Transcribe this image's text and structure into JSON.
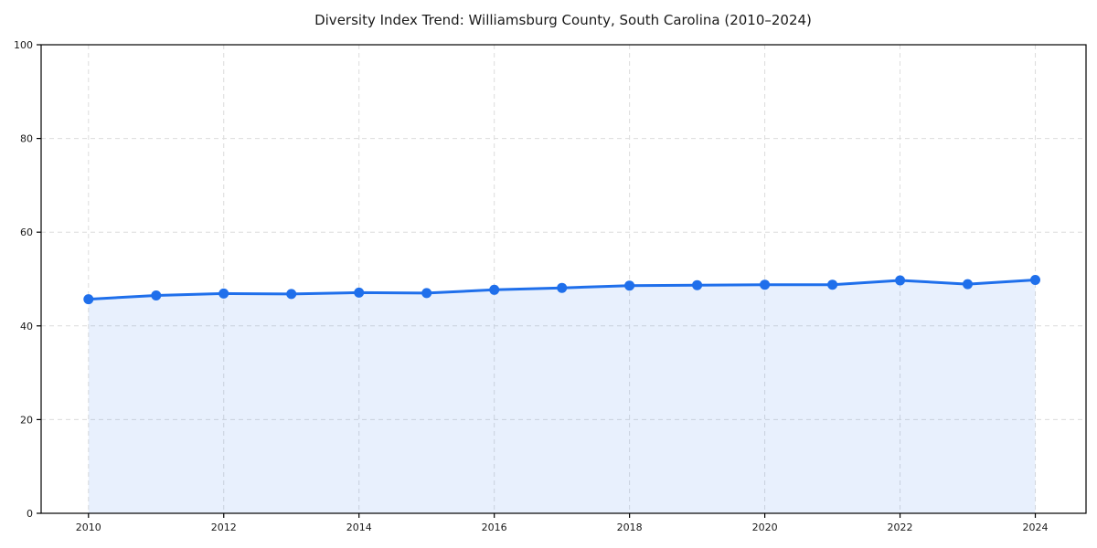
{
  "chart_data": {
    "type": "line",
    "title": "Diversity Index Trend: Williamsburg County, South Carolina (2010–2024)",
    "xlabel": "",
    "ylabel": "",
    "x": [
      2010,
      2011,
      2012,
      2013,
      2014,
      2015,
      2016,
      2017,
      2018,
      2019,
      2020,
      2021,
      2022,
      2023,
      2024
    ],
    "series": [
      {
        "name": "Diversity Index",
        "values": [
          45.7,
          46.5,
          46.9,
          46.8,
          47.1,
          47.0,
          47.7,
          48.1,
          48.6,
          48.7,
          48.8,
          48.8,
          49.7,
          48.9,
          49.8
        ]
      }
    ],
    "xlim": [
      2009.3,
      2024.75
    ],
    "ylim": [
      0,
      100
    ],
    "xticks": [
      "2010",
      "2012",
      "2014",
      "2016",
      "2018",
      "2020",
      "2022",
      "2024"
    ],
    "yticks": [
      "0",
      "20",
      "40",
      "60",
      "80",
      "100"
    ],
    "grid": true,
    "grid_style": "dashed",
    "legend_position": "none",
    "area_fill": true,
    "colors": {
      "line": "#1f6feb",
      "marker": "#1f6feb",
      "fill": "rgba(31,111,235,0.10)",
      "grid": "#dcdcdc",
      "axis": "#000000",
      "text": "#1a1a1a",
      "background": "#ffffff"
    }
  }
}
